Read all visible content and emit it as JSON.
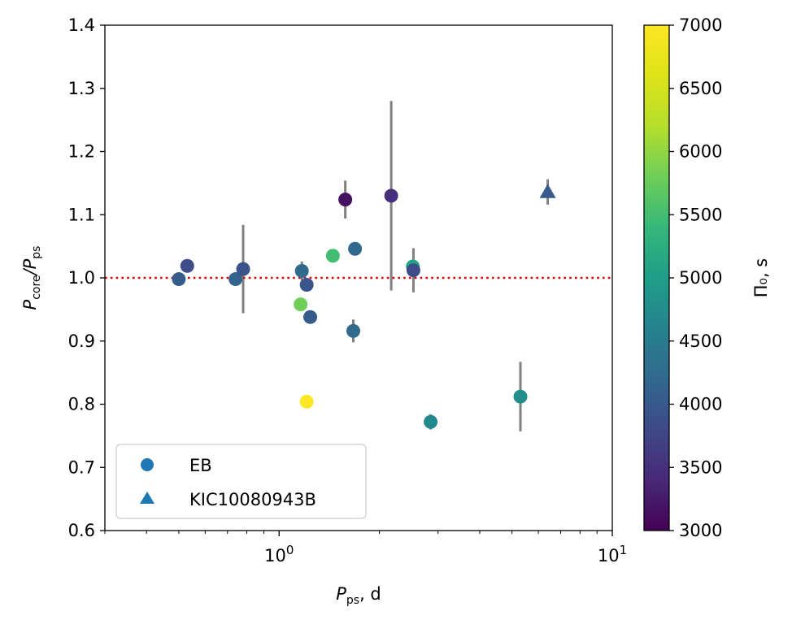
{
  "chart_data": {
    "type": "scatter",
    "title": "",
    "xlabel": {
      "main": "P",
      "sub": "ps",
      "suffix": ", d"
    },
    "ylabel": {
      "main": "P",
      "sub1": "core",
      "mid": "/P",
      "sub2": "ps"
    },
    "xscale": "log",
    "xlim": [
      0.3,
      10
    ],
    "ylim": [
      0.6,
      1.4
    ],
    "xticks": [
      {
        "value": 1,
        "base": "10",
        "exp": "0"
      },
      {
        "value": 10,
        "base": "10",
        "exp": "1"
      }
    ],
    "yticks": [
      0.6,
      0.7,
      0.8,
      0.9,
      1.0,
      1.1,
      1.2,
      1.3,
      1.4
    ],
    "ytick_labels": [
      "0.6",
      "0.7",
      "0.8",
      "0.9",
      "1.0",
      "1.1",
      "1.2",
      "1.3",
      "1.4"
    ],
    "reference_line": {
      "y": 1.0,
      "color": "#e00000",
      "style": "dotted"
    },
    "errorbar_color": "#808080",
    "colorbar": {
      "label": "Π₀, s",
      "range": [
        3000,
        7000
      ],
      "ticks": [
        3000,
        3500,
        4000,
        4500,
        5000,
        5500,
        6000,
        6500,
        7000
      ],
      "tick_labels": [
        "3000",
        "3500",
        "4000",
        "4500",
        "5000",
        "5500",
        "6000",
        "6500",
        "7000"
      ],
      "colormap": "viridis"
    },
    "legend": {
      "position": "lower-left",
      "entries": [
        {
          "label": "EB",
          "marker": "circle",
          "color": "#1f77b4"
        },
        {
          "label": "KIC10080943B",
          "marker": "triangle",
          "color": "#1f77b4"
        }
      ]
    },
    "series": [
      {
        "name": "EB",
        "marker": "circle",
        "points": [
          {
            "x": 0.5,
            "y": 0.998,
            "err": 0.0,
            "pi0": 4050
          },
          {
            "x": 0.53,
            "y": 1.019,
            "err": 0.0,
            "pi0": 3850
          },
          {
            "x": 0.74,
            "y": 0.998,
            "err": 0.0,
            "pi0": 4150
          },
          {
            "x": 0.78,
            "y": 1.014,
            "err": 0.07,
            "pi0": 3950
          },
          {
            "x": 1.16,
            "y": 0.958,
            "err": 0.0,
            "pi0": 5800
          },
          {
            "x": 1.17,
            "y": 1.011,
            "err": 0.015,
            "pi0": 4250
          },
          {
            "x": 1.21,
            "y": 0.989,
            "err": 0.0,
            "pi0": 3950
          },
          {
            "x": 1.21,
            "y": 0.804,
            "err": 0.01,
            "pi0": 7000
          },
          {
            "x": 1.24,
            "y": 0.938,
            "err": 0.0,
            "pi0": 4050
          },
          {
            "x": 1.45,
            "y": 1.035,
            "err": 0.0,
            "pi0": 5500
          },
          {
            "x": 1.58,
            "y": 1.124,
            "err": 0.03,
            "pi0": 3150
          },
          {
            "x": 1.67,
            "y": 0.916,
            "err": 0.018,
            "pi0": 4250
          },
          {
            "x": 1.69,
            "y": 1.046,
            "err": 0.0,
            "pi0": 4200
          },
          {
            "x": 2.17,
            "y": 1.13,
            "err": 0.15,
            "pi0": 3500
          },
          {
            "x": 2.52,
            "y": 1.018,
            "err": 0.0,
            "pi0": 5100
          },
          {
            "x": 2.53,
            "y": 1.012,
            "err": 0.035,
            "pi0": 3850
          },
          {
            "x": 2.85,
            "y": 0.772,
            "err": 0.012,
            "pi0": 4700
          },
          {
            "x": 5.3,
            "y": 0.812,
            "err": 0.055,
            "pi0": 4750
          }
        ]
      },
      {
        "name": "KIC10080943B",
        "marker": "triangle",
        "points": [
          {
            "x": 6.4,
            "y": 1.136,
            "err": 0.02,
            "pi0": 4000
          }
        ]
      }
    ]
  }
}
